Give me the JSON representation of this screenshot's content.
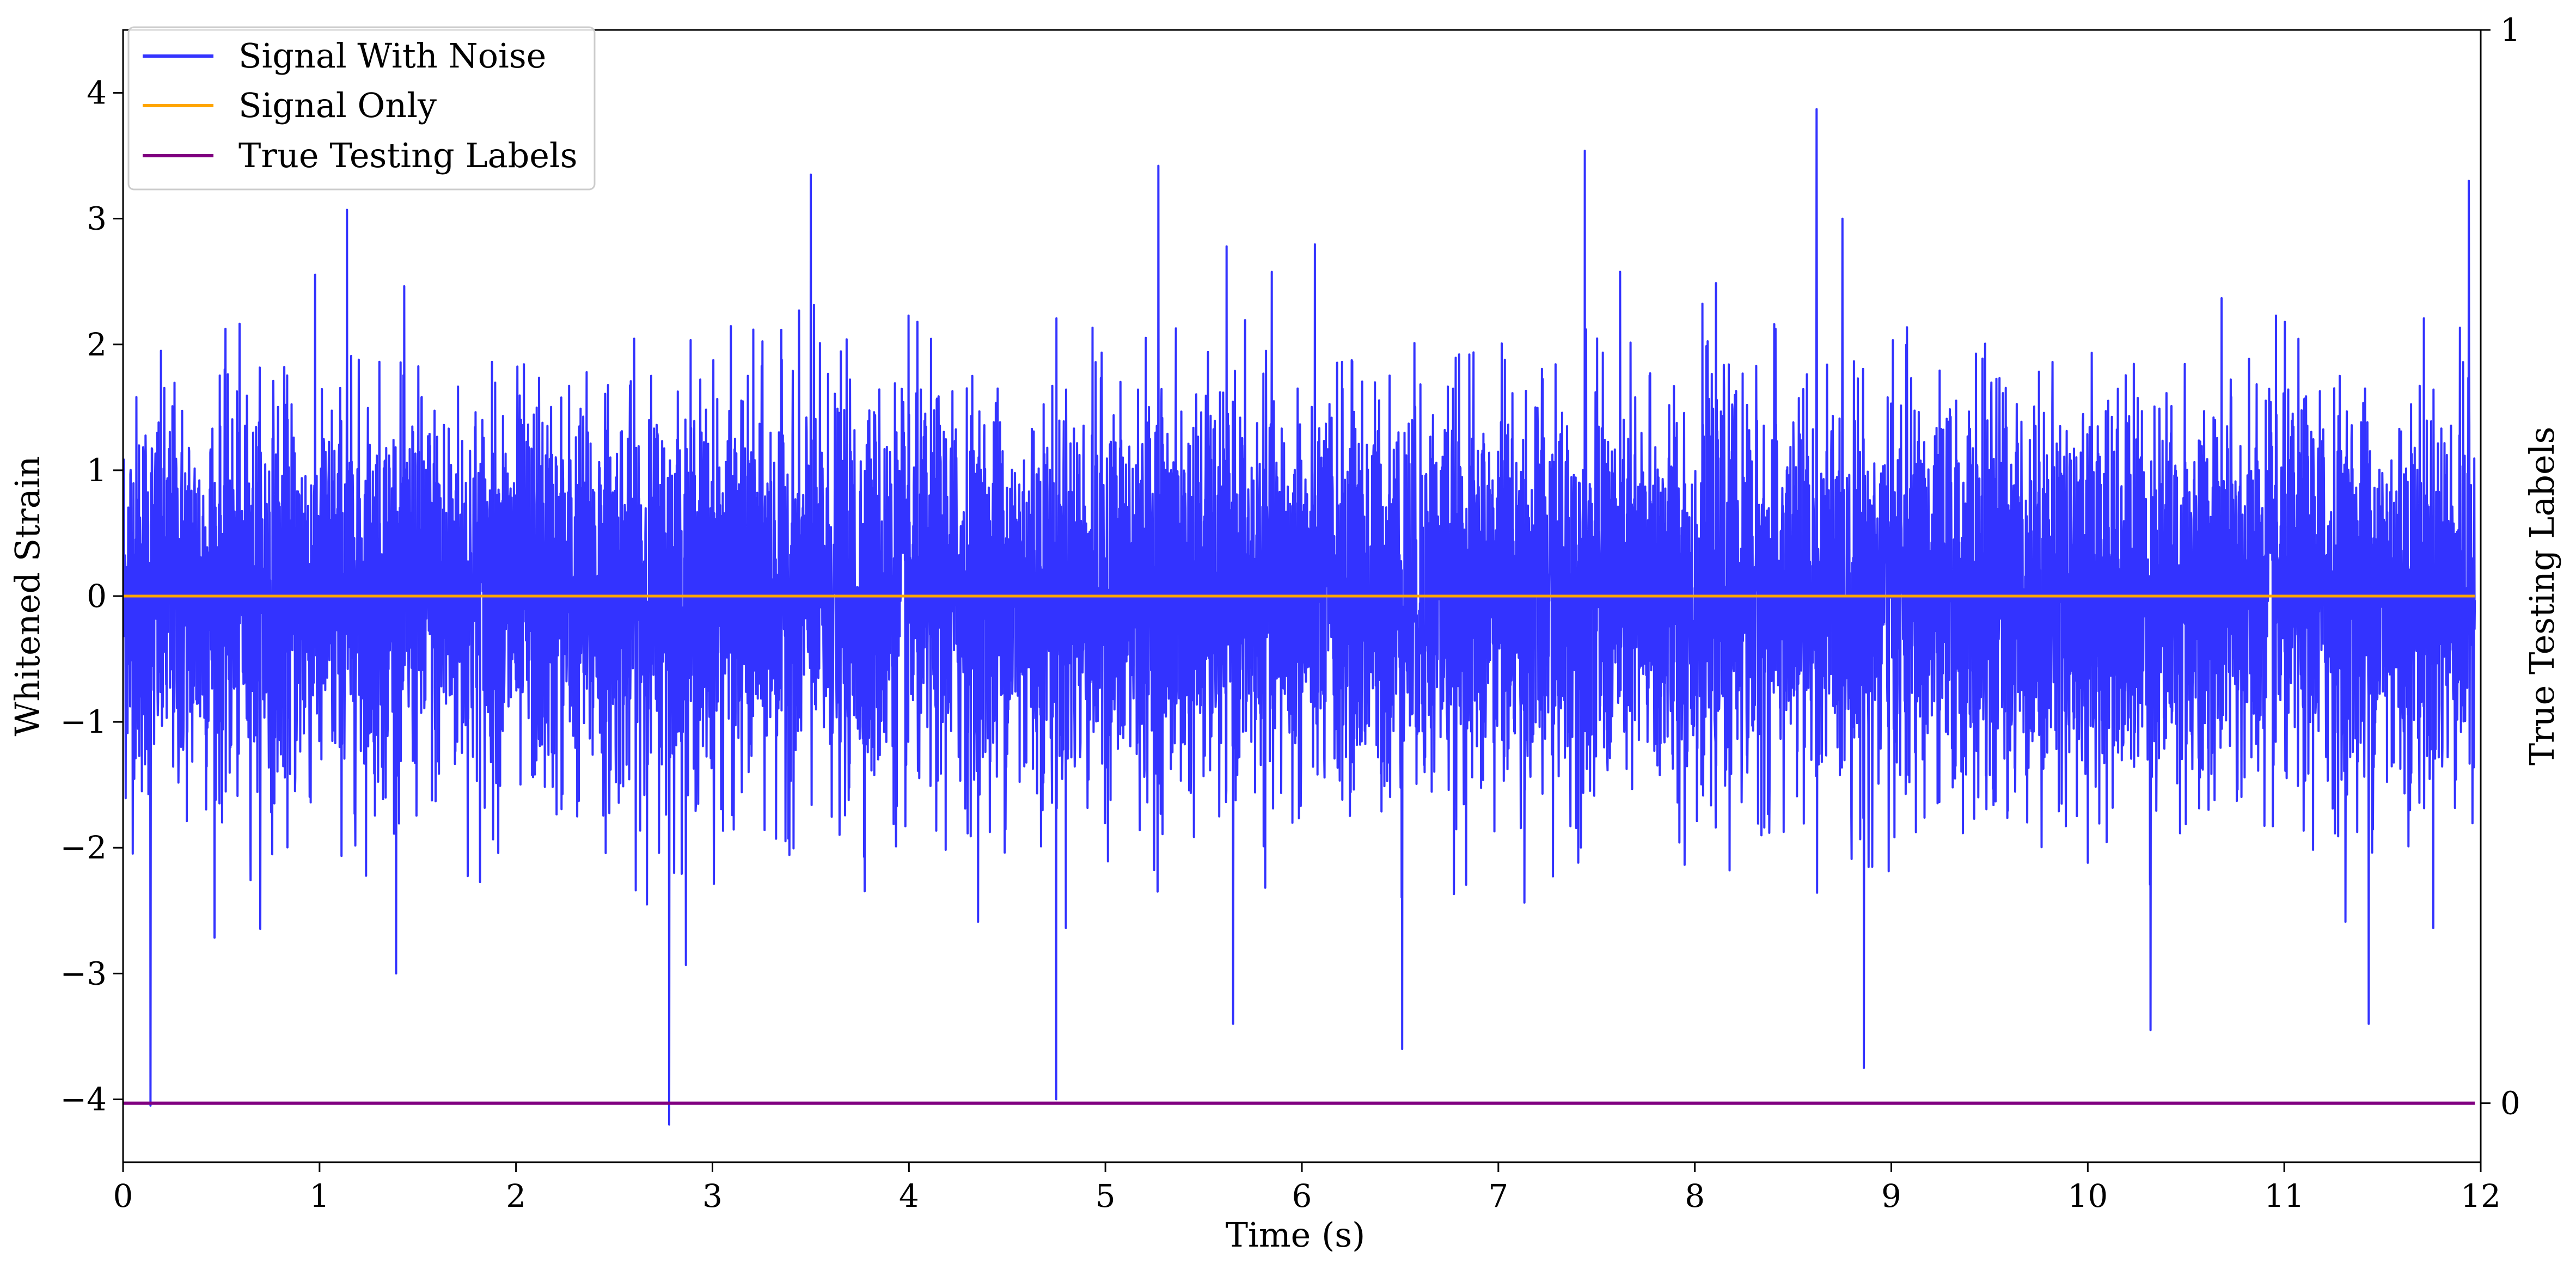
{
  "chart_data": {
    "type": "line",
    "title": "",
    "xlabel": "Time (s)",
    "ylabel": "Whitened Strain",
    "y2label": "True Testing Labels",
    "xlim": [
      0,
      12
    ],
    "ylim": [
      -4.5,
      4.5
    ],
    "y2lim": [
      -0.055,
      1.0
    ],
    "x_ticks": [
      "0",
      "1",
      "2",
      "3",
      "4",
      "5",
      "6",
      "7",
      "8",
      "9",
      "10",
      "11",
      "12"
    ],
    "y_ticks": [
      "−4",
      "−3",
      "−2",
      "−1",
      "0",
      "1",
      "2",
      "3",
      "4"
    ],
    "y2_ticks": [
      "0",
      "1"
    ],
    "grid": false,
    "legend_position": "top-left",
    "series": [
      {
        "name": "Signal With Noise",
        "axis": "left",
        "color": "#3333ff",
        "style": "dense noise, roughly ±2 with spikes",
        "x_range": [
          0,
          11.97
        ],
        "peaks": [
          {
            "x": 0.14,
            "y": -4.05
          },
          {
            "x": 2.78,
            "y": -4.2
          },
          {
            "x": 4.75,
            "y": -4.0
          },
          {
            "x": 8.62,
            "y": 3.87
          },
          {
            "x": 5.27,
            "y": 3.42
          },
          {
            "x": 3.5,
            "y": 3.35
          },
          {
            "x": 7.44,
            "y": 3.54
          },
          {
            "x": 11.94,
            "y": 3.3
          },
          {
            "x": 1.14,
            "y": 3.07
          },
          {
            "x": 8.86,
            "y": -3.75
          },
          {
            "x": 10.32,
            "y": -3.45
          },
          {
            "x": 6.51,
            "y": -3.6
          },
          {
            "x": 5.65,
            "y": -3.4
          },
          {
            "x": 11.43,
            "y": -3.4
          }
        ]
      },
      {
        "name": "Signal Only",
        "axis": "left",
        "color": "#ffa500",
        "x": [
          0,
          11.97
        ],
        "y": [
          0,
          0
        ]
      },
      {
        "name": "True Testing Labels",
        "axis": "right",
        "color": "#800080",
        "x": [
          0,
          11.97
        ],
        "y": [
          0,
          0
        ]
      }
    ]
  }
}
